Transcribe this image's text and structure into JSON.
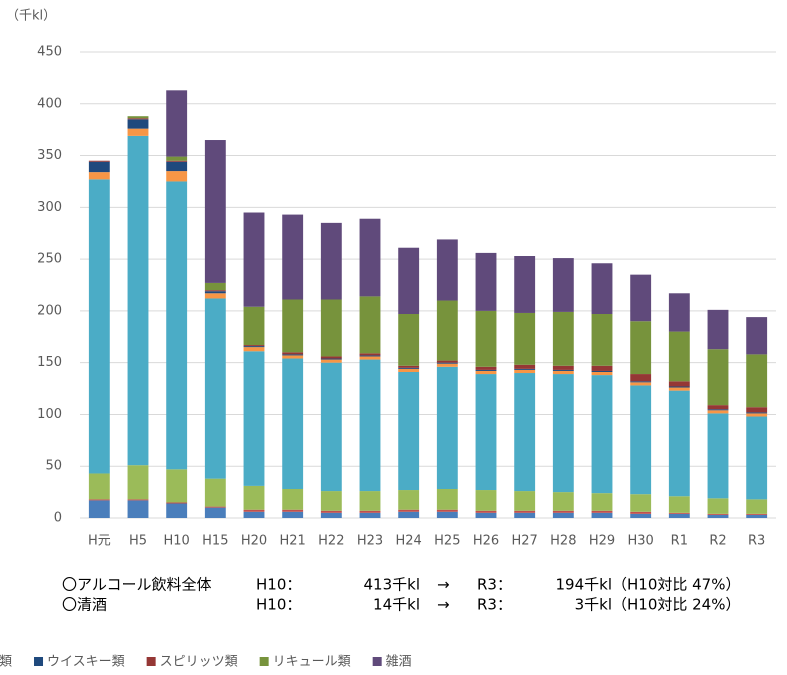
{
  "chart_data": {
    "type": "stacked_bar",
    "unit_label": "（千kl）",
    "categories": [
      "H元",
      "H5",
      "H10",
      "H15",
      "H20",
      "H21",
      "H22",
      "H23",
      "H24",
      "H25",
      "H26",
      "H27",
      "H28",
      "H29",
      "H30",
      "R1",
      "R2",
      "R3"
    ],
    "series": [
      {
        "color": "#4a7ebb",
        "values": [
          17,
          17,
          14,
          10,
          6,
          6,
          5,
          5,
          6,
          6,
          5,
          5,
          5,
          5,
          4,
          4,
          3,
          3
        ]
      },
      {
        "color": "#c0504d",
        "values": [
          1,
          1,
          1,
          1,
          2,
          2,
          2,
          2,
          2,
          2,
          2,
          2,
          2,
          2,
          2,
          1,
          1,
          1
        ]
      },
      {
        "color": "#9bbb59",
        "values": [
          25,
          33,
          32,
          27,
          23,
          20,
          19,
          19,
          19,
          20,
          20,
          19,
          18,
          17,
          17,
          16,
          15,
          14
        ]
      },
      {
        "color": "#4bacc6",
        "values": [
          284,
          318,
          278,
          174,
          130,
          126,
          124,
          127,
          114,
          118,
          112,
          114,
          114,
          114,
          105,
          102,
          82,
          80
        ]
      },
      {
        "name": "類",
        "color": "#f79646",
        "values": [
          7,
          7,
          10,
          5,
          4,
          3,
          3,
          3,
          3,
          3,
          3,
          3,
          3,
          3,
          3,
          3,
          3,
          3
        ]
      },
      {
        "name": "ウイスキー類",
        "color": "#1f497d",
        "values": [
          10,
          9,
          9,
          2,
          1,
          1,
          1,
          1,
          1,
          1,
          1,
          1,
          1,
          1,
          1,
          1,
          1,
          1
        ]
      },
      {
        "name": "スピリッツ類",
        "color": "#953735",
        "values": [
          1,
          1,
          1,
          1,
          1,
          2,
          2,
          2,
          2,
          2,
          3,
          4,
          4,
          5,
          7,
          5,
          4,
          5
        ]
      },
      {
        "name": "リキュール類",
        "color": "#77933c",
        "values": [
          0,
          2,
          4,
          7,
          37,
          51,
          55,
          55,
          50,
          58,
          54,
          50,
          52,
          50,
          51,
          48,
          54,
          51
        ]
      },
      {
        "name": "雑酒",
        "color": "#604a7b",
        "values": [
          0,
          0,
          64,
          138,
          91,
          82,
          74,
          75,
          64,
          59,
          56,
          55,
          52,
          49,
          45,
          37,
          38,
          36
        ]
      }
    ],
    "ylim": [
      0,
      450
    ],
    "yticks": [
      0,
      50,
      100,
      150,
      200,
      250,
      300,
      350,
      400,
      450
    ],
    "grid": true,
    "notes": [
      {
        "label": "〇アルコール飲料全体",
        "from": "H10：",
        "from_value": "413千kl",
        "arrow": "→",
        "to": "R3：",
        "to_value": "194千kl",
        "ratio": "（H10対比 47%）"
      },
      {
        "label": "〇清酒",
        "from": "H10：",
        "from_value": "14千kl",
        "arrow": "→",
        "to": "R3：",
        "to_value": "3千kl",
        "ratio": "（H10対比 24%）"
      }
    ]
  }
}
